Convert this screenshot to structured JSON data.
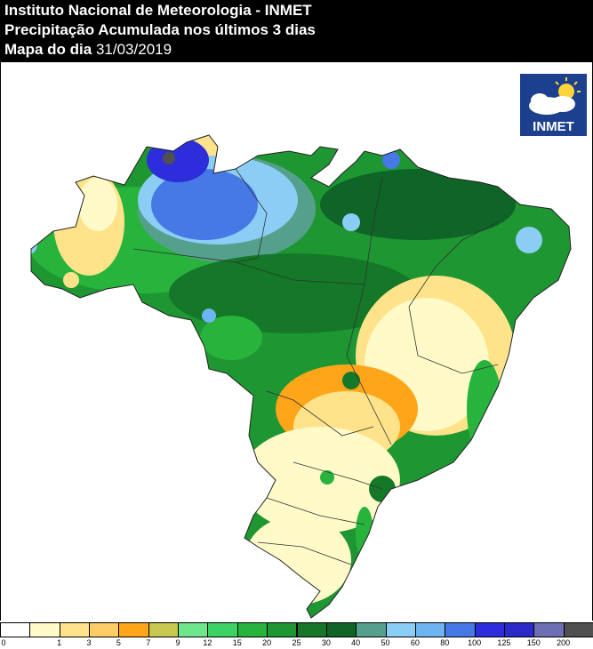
{
  "header": {
    "line1": "Instituto Nacional de Meteorologia - INMET",
    "line2": "Precipitação Acumulada nos últimos 3 dias",
    "line3_label": "Mapa do dia",
    "line3_date": "31/03/2019"
  },
  "logo": {
    "text": "INMET",
    "icon": "sun-cloud-icon"
  },
  "legend": {
    "ticks": [
      "0",
      "1",
      "3",
      "5",
      "7",
      "9",
      "12",
      "15",
      "20",
      "25",
      "30",
      "40",
      "50",
      "60",
      "80",
      "100",
      "125",
      "150",
      "200"
    ],
    "colors": [
      "#ffffff",
      "#fffac8",
      "#ffe38a",
      "#ffcc66",
      "#ffa519",
      "#c8c850",
      "#6ee68c",
      "#3cd264",
      "#28b43c",
      "#1e9632",
      "#147828",
      "#0f6428",
      "#55a08c",
      "#8ccdf5",
      "#6eb4f0",
      "#4678e6",
      "#2d2ddc",
      "#2a2ac8",
      "#6e6eb4",
      "#505050"
    ]
  },
  "map": {
    "region": "Brasil",
    "colors": {
      "water_none": "#ffffff",
      "dry": "#fffac8",
      "yellow": "#ffe38a",
      "orange": "#ffa519",
      "light_green": "#6ee68c",
      "green": "#28b43c",
      "dark_green": "#147828",
      "teal": "#55a08c",
      "light_blue": "#8ccdf5",
      "blue": "#4678e6",
      "dark_blue": "#2d2ddc"
    }
  }
}
